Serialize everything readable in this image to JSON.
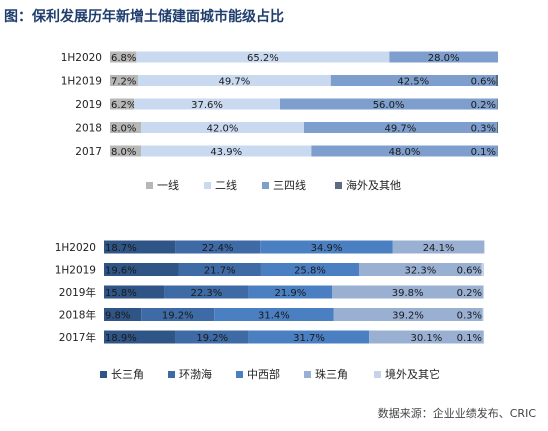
{
  "title": "图：保利发展历年新增土储建面城市能级占比",
  "source": "数据来源：企业业绩发布、CRIC",
  "chart_data": [
    {
      "type": "bar",
      "orientation": "horizontal",
      "stacked": "percent",
      "categories": [
        "1H2020",
        "1H2019",
        "2019",
        "2018",
        "2017"
      ],
      "series": [
        {
          "name": "一线",
          "color": "#b7b7b7",
          "values": [
            6.8,
            7.2,
            6.2,
            8.0,
            8.0
          ],
          "labels": [
            "6.8%",
            "7.2%",
            "6.2%",
            "8.0%",
            "8.0%"
          ]
        },
        {
          "name": "二线",
          "color": "#c9daf0",
          "values": [
            65.2,
            49.7,
            37.6,
            42.0,
            43.9
          ],
          "labels": [
            "65.2%",
            "49.7%",
            "37.6%",
            "42.0%",
            "43.9%"
          ]
        },
        {
          "name": "三四线",
          "color": "#7e9fcd",
          "values": [
            28.0,
            42.5,
            56.0,
            49.7,
            48.0
          ],
          "labels": [
            "28.0%",
            "42.5%",
            "56.0%",
            "49.7%",
            "48.0%"
          ]
        },
        {
          "name": "海外及其他",
          "color": "#5b6b80",
          "values": [
            0.0,
            0.6,
            0.2,
            0.3,
            0.1
          ],
          "labels": [
            "",
            "0.6%",
            "0.2%",
            "0.3%",
            "0.1%"
          ]
        }
      ],
      "legend": "bottom"
    },
    {
      "type": "bar",
      "orientation": "horizontal",
      "stacked": "percent",
      "categories": [
        "1H2020",
        "1H2019",
        "2019年",
        "2018年",
        "2017年"
      ],
      "series": [
        {
          "name": "长三角",
          "color": "#2f5486",
          "values": [
            18.7,
            19.6,
            15.8,
            9.8,
            18.9
          ],
          "labels": [
            "18.7%",
            "19.6%",
            "15.8%",
            "9.8%",
            "18.9%"
          ]
        },
        {
          "name": "环渤海",
          "color": "#3e6aa5",
          "values": [
            22.4,
            21.7,
            22.3,
            19.2,
            19.2
          ],
          "labels": [
            "22.4%",
            "21.7%",
            "22.3%",
            "19.2%",
            "19.2%"
          ]
        },
        {
          "name": "中西部",
          "color": "#4a7fc2",
          "values": [
            34.9,
            25.8,
            21.9,
            31.4,
            31.7
          ],
          "labels": [
            "34.9%",
            "25.8%",
            "21.9%",
            "31.4%",
            "31.7%"
          ]
        },
        {
          "name": "珠三角",
          "color": "#99b0d3",
          "values": [
            24.1,
            32.3,
            39.8,
            39.2,
            30.1
          ],
          "labels": [
            "24.1%",
            "32.3%",
            "39.8%",
            "39.2%",
            "30.1%"
          ]
        },
        {
          "name": "境外及其它",
          "color": "#c7d3e8",
          "values": [
            0.0,
            0.6,
            0.2,
            0.3,
            0.1
          ],
          "labels": [
            "",
            "0.6%",
            "0.2%",
            "0.3%",
            "0.1%"
          ]
        }
      ],
      "legend": "bottom"
    }
  ]
}
